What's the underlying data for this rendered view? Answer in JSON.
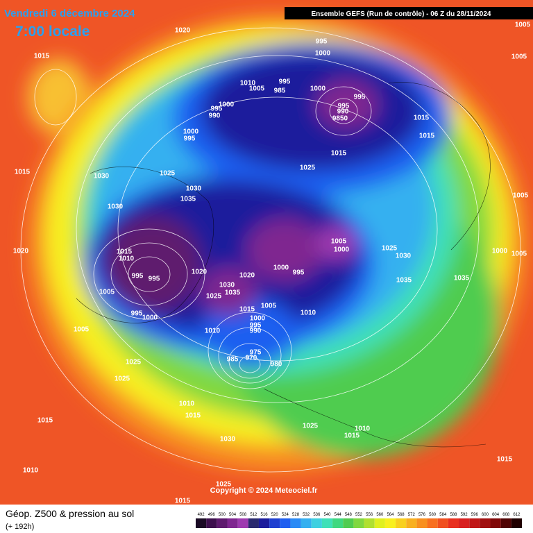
{
  "header": {
    "date": "Vendredi 6 décembre 2024",
    "time": "7:00 locale",
    "run": "Ensemble GEFS (Run de contrôle)  -  06 Z du 28/11/2024"
  },
  "copyright": "Copyright © 2024 Meteociel.fr",
  "footer": {
    "title": "Géop. Z500 & pression au sol",
    "lead": "(+ 192h)"
  },
  "isobar_labels": [
    "1020",
    "1015",
    "995",
    "1000",
    "1005",
    "1005",
    "1010",
    "1005",
    "995",
    "985",
    "1000",
    "995",
    "995",
    "990",
    "9850",
    "1000",
    "995",
    "990",
    "1015",
    "1015",
    "1000",
    "995",
    "1015",
    "1025",
    "1015",
    "1030",
    "1025",
    "1030",
    "1035",
    "1030",
    "1005",
    "1020",
    "1015",
    "1010",
    "995",
    "995",
    "1005",
    "1000",
    "1025",
    "1030",
    "1000",
    "1005",
    "1020",
    "1000",
    "995",
    "1030",
    "1035",
    "1020",
    "1025",
    "1005",
    "1035",
    "1035",
    "1015",
    "1005",
    "995",
    "1000",
    "1010",
    "1000",
    "995",
    "990",
    "1005",
    "1010",
    "975",
    "970",
    "985",
    "980",
    "1025",
    "1025",
    "1010",
    "1015",
    "1015",
    "1025",
    "1010",
    "1015",
    "1030",
    "1015",
    "1010",
    "1025",
    "1015"
  ],
  "scale": {
    "labels": [
      "492",
      "496",
      "500",
      "504",
      "508",
      "512",
      "516",
      "520",
      "524",
      "528",
      "532",
      "536",
      "540",
      "544",
      "548",
      "552",
      "556",
      "560",
      "564",
      "568",
      "572",
      "576",
      "580",
      "584",
      "588",
      "592",
      "596",
      "600",
      "604",
      "608",
      "612"
    ],
    "colors": [
      "#1a0a24",
      "#3d0f4d",
      "#5e1a6e",
      "#7f2690",
      "#9e3ab0",
      "#2a2a6e",
      "#1c1c9c",
      "#1f3fd0",
      "#1f5ff0",
      "#2a8af5",
      "#35b0f0",
      "#3fd0e0",
      "#40e0b8",
      "#40d880",
      "#50cc50",
      "#80d840",
      "#b0e030",
      "#e0f020",
      "#f8f020",
      "#f8d020",
      "#f8b020",
      "#f89020",
      "#f87020",
      "#f05020",
      "#e83020",
      "#d82020",
      "#c01818",
      "#a01010",
      "#800808",
      "#500404",
      "#200000"
    ]
  }
}
